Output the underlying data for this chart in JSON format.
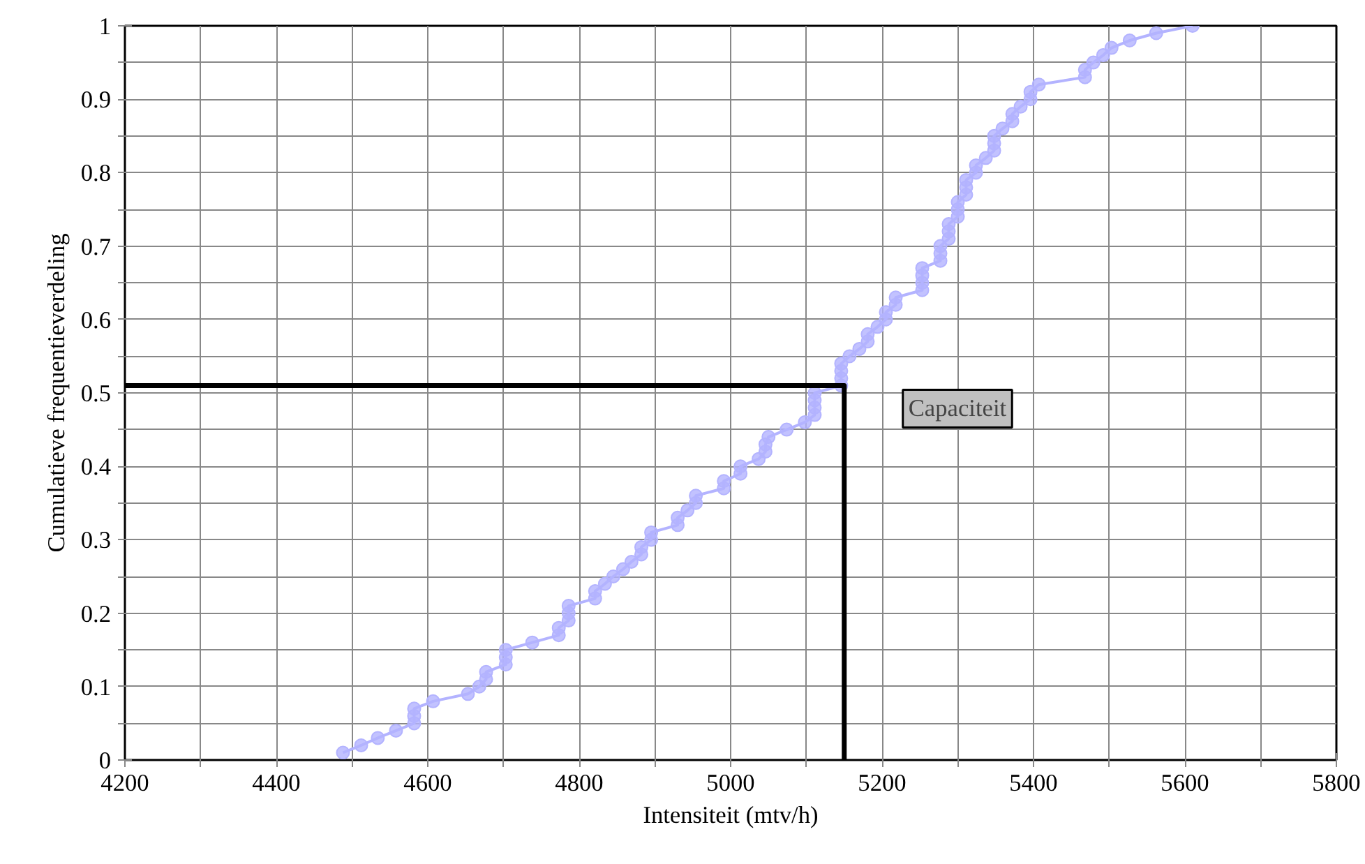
{
  "chart_data": {
    "type": "line",
    "xlabel": "Intensiteit (mtv/h)",
    "ylabel": "Cumulatieve frequentieverdeling",
    "xlim": [
      4200,
      5800
    ],
    "ylim": [
      0,
      1
    ],
    "xticks": [
      4200,
      {
        "value": 4300,
        "label": null
      },
      4400,
      {
        "value": 4500,
        "label": null
      },
      4600,
      {
        "value": 4700,
        "label": null
      },
      4800,
      {
        "value": 4900,
        "label": null
      },
      5000,
      {
        "value": 5100,
        "label": null
      },
      5200,
      {
        "value": 5300,
        "label": null
      },
      5400,
      {
        "value": 5500,
        "label": null
      },
      5600,
      {
        "value": 5700,
        "label": null
      },
      5800
    ],
    "yticks": [
      0,
      {
        "value": 0.05,
        "label": null
      },
      0.1,
      {
        "value": 0.15,
        "label": null
      },
      0.2,
      {
        "value": 0.25,
        "label": null
      },
      0.3,
      {
        "value": 0.35,
        "label": null
      },
      0.4,
      {
        "value": 0.45,
        "label": null
      },
      0.5,
      {
        "value": 0.55,
        "label": null
      },
      0.6,
      {
        "value": 0.65,
        "label": null
      },
      0.7,
      {
        "value": 0.75,
        "label": null
      },
      0.8,
      {
        "value": 0.85,
        "label": null
      },
      0.9,
      {
        "value": 0.95,
        "label": null
      },
      1
    ],
    "grid": true,
    "marker": "circle",
    "line_style": "solid",
    "series": [
      {
        "color": "#b3b3ff",
        "x": [
          4488,
          4512,
          4534,
          4558,
          4582,
          4582,
          4582,
          4607,
          4653,
          4668,
          4677,
          4677,
          4703,
          4703,
          4703,
          4738,
          4773,
          4773,
          4786,
          4786,
          4786,
          4821,
          4821,
          4834,
          4845,
          4858,
          4869,
          4882,
          4882,
          4895,
          4895,
          4930,
          4930,
          4943,
          4954,
          4954,
          4991,
          4991,
          5013,
          5013,
          5037,
          5046,
          5046,
          5050,
          5074,
          5098,
          5111,
          5111,
          5111,
          5111,
          5146,
          5146,
          5146,
          5146,
          5157,
          5170,
          5181,
          5181,
          5194,
          5205,
          5205,
          5218,
          5218,
          5253,
          5253,
          5253,
          5253,
          5277,
          5277,
          5277,
          5288,
          5288,
          5288,
          5300,
          5300,
          5300,
          5311,
          5311,
          5311,
          5324,
          5324,
          5337,
          5348,
          5348,
          5348,
          5359,
          5372,
          5372,
          5383,
          5396,
          5396,
          5407,
          5468,
          5468,
          5479,
          5492,
          5503,
          5527,
          5562,
          5610
        ],
        "values": [
          0.01,
          0.02,
          0.03,
          0.04,
          0.05,
          0.06,
          0.07,
          0.08,
          0.09,
          0.1,
          0.11,
          0.12,
          0.13,
          0.14,
          0.15,
          0.16,
          0.17,
          0.18,
          0.19,
          0.2,
          0.21,
          0.22,
          0.23,
          0.24,
          0.25,
          0.26,
          0.27,
          0.28,
          0.29,
          0.3,
          0.31,
          0.32,
          0.33,
          0.34,
          0.35,
          0.36,
          0.37,
          0.38,
          0.39,
          0.4,
          0.41,
          0.42,
          0.43,
          0.44,
          0.45,
          0.46,
          0.47,
          0.48,
          0.49,
          0.5,
          0.51,
          0.52,
          0.53,
          0.54,
          0.55,
          0.56,
          0.57,
          0.58,
          0.59,
          0.6,
          0.61,
          0.62,
          0.63,
          0.64,
          0.65,
          0.66,
          0.67,
          0.68,
          0.69,
          0.7,
          0.71,
          0.72,
          0.73,
          0.74,
          0.75,
          0.76,
          0.77,
          0.78,
          0.79,
          0.8,
          0.81,
          0.82,
          0.83,
          0.84,
          0.85,
          0.86,
          0.87,
          0.88,
          0.89,
          0.9,
          0.91,
          0.92,
          0.93,
          0.94,
          0.95,
          0.96,
          0.97,
          0.98,
          0.99,
          1.0
        ]
      },
      {
        "type": "line",
        "marker": "none",
        "color": "#000000",
        "x": [
          4200,
          5150,
          5150
        ],
        "values": [
          0.51,
          0.51,
          0
        ]
      }
    ],
    "annotations": [
      {
        "text": "Capaciteit",
        "x": 5150,
        "y": 0.51
      }
    ]
  }
}
